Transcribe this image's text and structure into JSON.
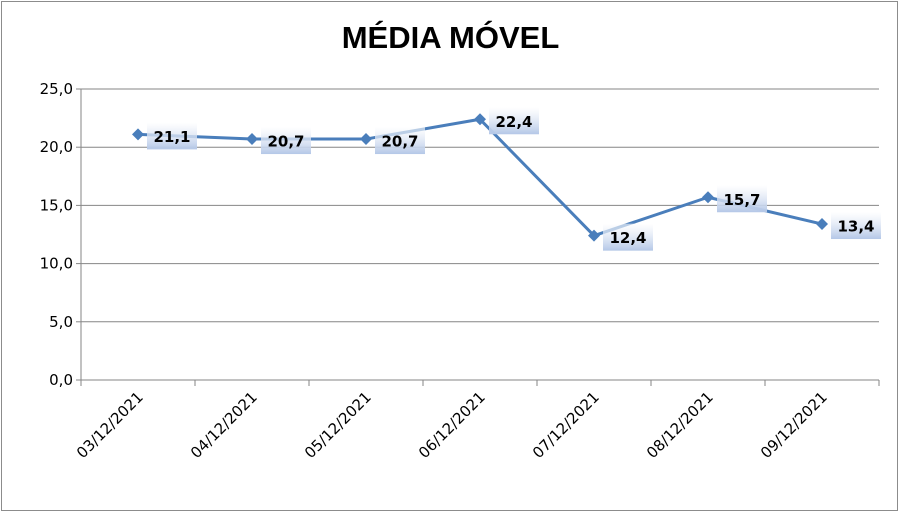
{
  "chart_data": {
    "type": "line",
    "title": "MÉDIA MÓVEL",
    "xlabel": "",
    "ylabel": "",
    "categories": [
      "03/12/2021",
      "04/12/2021",
      "05/12/2021",
      "06/12/2021",
      "07/12/2021",
      "08/12/2021",
      "09/12/2021"
    ],
    "series": [
      {
        "values": [
          21.1,
          20.7,
          20.7,
          22.4,
          12.4,
          15.7,
          13.4
        ]
      }
    ],
    "data_labels": [
      "21,1",
      "20,7",
      "20,7",
      "22,4",
      "12,4",
      "15,7",
      "13,4"
    ],
    "ylim": [
      0,
      25
    ],
    "yticks": [
      0,
      5,
      10,
      15,
      20,
      25
    ],
    "ytick_labels": [
      "0,0",
      "5,0",
      "10,0",
      "15,0",
      "20,0",
      "25,0"
    ],
    "grid": true,
    "legend": "none",
    "colors": {
      "line": "#4a7ebb",
      "marker": "#4a7ebb",
      "grid": "#868686",
      "label_bg": "#c5d3ec"
    }
  }
}
